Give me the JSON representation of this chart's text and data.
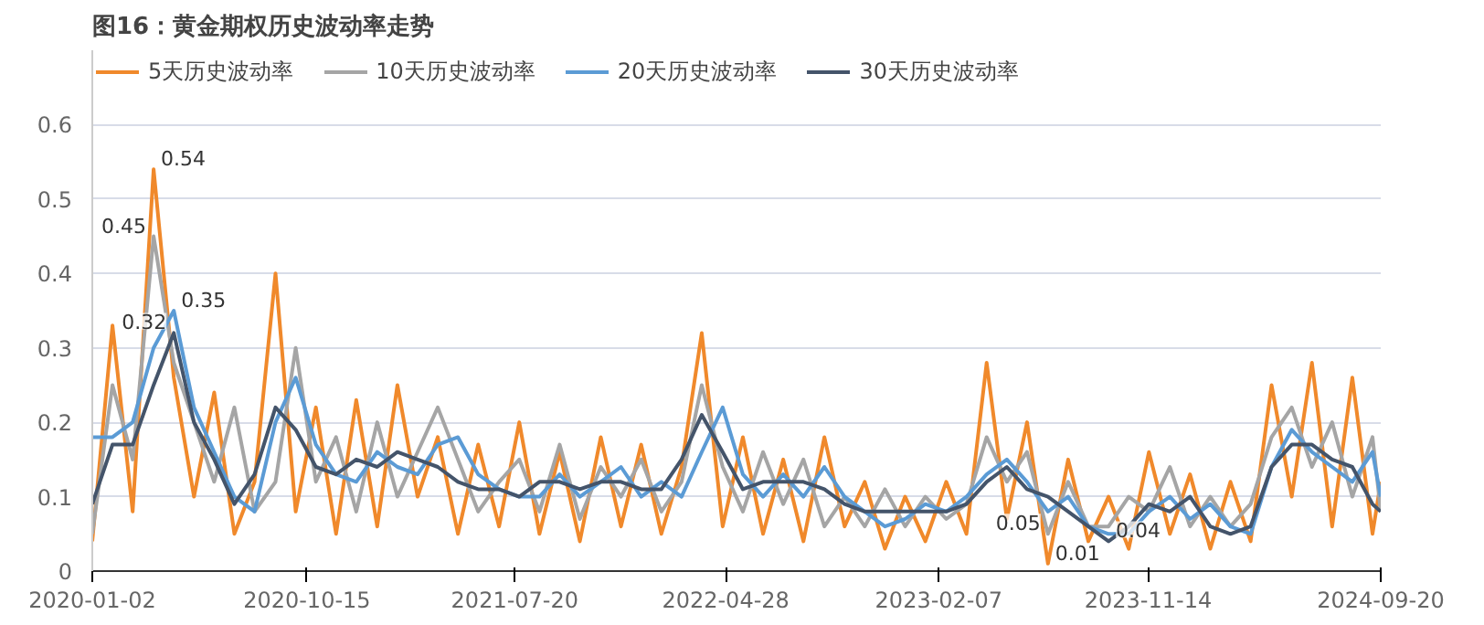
{
  "chart_data": {
    "type": "line",
    "title": "图16：黄金期权历史波动率走势",
    "x": [
      "2020-01-02",
      "2020-01-29",
      "2020-02-25",
      "2020-03-24",
      "2020-04-20",
      "2020-05-17",
      "2020-06-13",
      "2020-07-10",
      "2020-08-06",
      "2020-09-03",
      "2020-09-30",
      "2020-10-27",
      "2020-11-23",
      "2020-12-20",
      "2021-01-17",
      "2021-02-13",
      "2021-03-12",
      "2021-04-08",
      "2021-05-05",
      "2021-06-01",
      "2021-06-29",
      "2021-07-26",
      "2021-08-22",
      "2021-09-18",
      "2021-10-15",
      "2021-11-12",
      "2021-12-09",
      "2022-01-05",
      "2022-02-01",
      "2022-02-28",
      "2022-03-27",
      "2022-04-24",
      "2022-05-21",
      "2022-06-17",
      "2022-07-14",
      "2022-08-10",
      "2022-09-07",
      "2022-10-04",
      "2022-10-31",
      "2022-11-27",
      "2022-12-24",
      "2023-01-20",
      "2023-02-17",
      "2023-03-16",
      "2023-04-12",
      "2023-05-09",
      "2023-06-05",
      "2023-07-03",
      "2023-07-30",
      "2023-08-26",
      "2023-09-22",
      "2023-10-19",
      "2023-11-15",
      "2023-12-13",
      "2024-01-09",
      "2024-02-05",
      "2024-03-03",
      "2024-03-30",
      "2024-04-27",
      "2024-05-24",
      "2024-06-20",
      "2024-07-17",
      "2024-08-13",
      "2024-09-09",
      "2024-09-20"
    ],
    "series": [
      {
        "name": "5天历史波动率",
        "color": "#f0892b",
        "values": [
          0.04,
          0.33,
          0.08,
          0.54,
          0.26,
          0.1,
          0.24,
          0.05,
          0.12,
          0.4,
          0.08,
          0.22,
          0.05,
          0.23,
          0.06,
          0.25,
          0.1,
          0.18,
          0.05,
          0.17,
          0.06,
          0.2,
          0.05,
          0.16,
          0.04,
          0.18,
          0.06,
          0.17,
          0.05,
          0.14,
          0.32,
          0.06,
          0.18,
          0.05,
          0.15,
          0.04,
          0.18,
          0.06,
          0.12,
          0.03,
          0.1,
          0.04,
          0.12,
          0.05,
          0.28,
          0.07,
          0.2,
          0.01,
          0.15,
          0.04,
          0.1,
          0.03,
          0.16,
          0.05,
          0.13,
          0.03,
          0.12,
          0.04,
          0.25,
          0.1,
          0.28,
          0.06,
          0.26,
          0.05,
          0.12
        ]
      },
      {
        "name": "10天历史波动率",
        "color": "#a5a5a5",
        "values": [
          0.05,
          0.25,
          0.15,
          0.45,
          0.28,
          0.2,
          0.12,
          0.22,
          0.08,
          0.12,
          0.3,
          0.12,
          0.18,
          0.08,
          0.2,
          0.1,
          0.16,
          0.22,
          0.15,
          0.08,
          0.12,
          0.15,
          0.08,
          0.17,
          0.07,
          0.14,
          0.1,
          0.15,
          0.08,
          0.12,
          0.25,
          0.14,
          0.08,
          0.16,
          0.09,
          0.15,
          0.06,
          0.1,
          0.06,
          0.11,
          0.06,
          0.1,
          0.07,
          0.09,
          0.18,
          0.12,
          0.16,
          0.05,
          0.12,
          0.06,
          0.06,
          0.1,
          0.08,
          0.14,
          0.06,
          0.1,
          0.06,
          0.09,
          0.18,
          0.22,
          0.14,
          0.2,
          0.1,
          0.18,
          0.08
        ]
      },
      {
        "name": "20天历史波动率",
        "color": "#5b9bd5",
        "values": [
          0.18,
          0.18,
          0.2,
          0.3,
          0.35,
          0.22,
          0.16,
          0.1,
          0.08,
          0.2,
          0.26,
          0.17,
          0.13,
          0.12,
          0.16,
          0.14,
          0.13,
          0.17,
          0.18,
          0.13,
          0.11,
          0.1,
          0.1,
          0.13,
          0.1,
          0.12,
          0.14,
          0.1,
          0.12,
          0.1,
          0.16,
          0.22,
          0.13,
          0.1,
          0.13,
          0.1,
          0.14,
          0.1,
          0.08,
          0.06,
          0.07,
          0.09,
          0.08,
          0.1,
          0.13,
          0.15,
          0.12,
          0.08,
          0.1,
          0.06,
          0.05,
          0.05,
          0.08,
          0.1,
          0.07,
          0.09,
          0.06,
          0.05,
          0.14,
          0.19,
          0.16,
          0.14,
          0.12,
          0.16,
          0.1
        ]
      },
      {
        "name": "30天历史波动率",
        "color": "#44546a",
        "values": [
          0.09,
          0.17,
          0.17,
          0.25,
          0.32,
          0.2,
          0.15,
          0.09,
          0.13,
          0.22,
          0.19,
          0.14,
          0.13,
          0.15,
          0.14,
          0.16,
          0.15,
          0.14,
          0.12,
          0.11,
          0.11,
          0.1,
          0.12,
          0.12,
          0.11,
          0.12,
          0.12,
          0.11,
          0.11,
          0.15,
          0.21,
          0.16,
          0.11,
          0.12,
          0.12,
          0.12,
          0.11,
          0.09,
          0.08,
          0.08,
          0.08,
          0.08,
          0.08,
          0.09,
          0.12,
          0.14,
          0.11,
          0.1,
          0.08,
          0.06,
          0.04,
          0.06,
          0.09,
          0.08,
          0.1,
          0.06,
          0.05,
          0.06,
          0.14,
          0.17,
          0.17,
          0.15,
          0.14,
          0.09,
          0.08
        ]
      }
    ],
    "annotations": [
      {
        "text": "0.54",
        "x": "2020-03-24",
        "y": 0.54
      },
      {
        "text": "0.45",
        "x": "2020-03-24",
        "y": 0.45
      },
      {
        "text": "0.35",
        "x": "2020-04-20",
        "y": 0.35
      },
      {
        "text": "0.32",
        "x": "2020-04-20",
        "y": 0.32
      },
      {
        "text": "0.01",
        "x": "2023-07-03",
        "y": 0.01
      },
      {
        "text": "0.05",
        "x": "2023-07-03",
        "y": 0.05
      },
      {
        "text": "0.04",
        "x": "2023-09-22",
        "y": 0.04
      }
    ],
    "xlim": [
      "2020-01-02",
      "2024-09-20"
    ],
    "xticks": [
      "2020-01-02",
      "2020-10-15",
      "2021-07-20",
      "2022-04-28",
      "2023-02-07",
      "2023-11-14",
      "2024-09-20"
    ],
    "ylim": [
      0,
      0.7
    ],
    "yticks": [
      0,
      0.1,
      0.2,
      0.3,
      0.4,
      0.5,
      0.6
    ],
    "grid": "y",
    "legend": "top left",
    "line_style": "solid"
  }
}
